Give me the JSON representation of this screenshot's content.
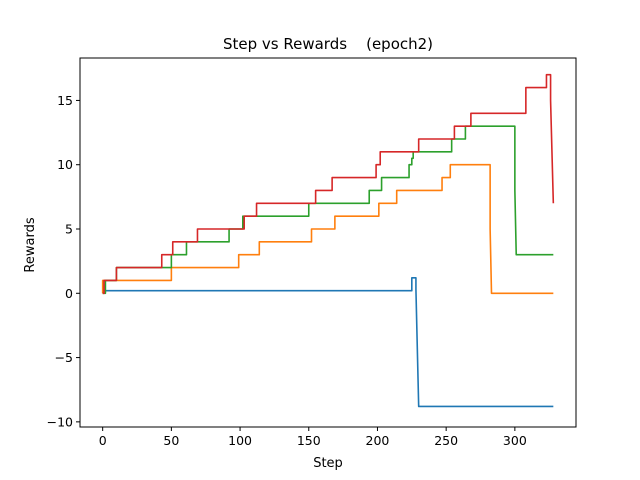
{
  "chart_data": {
    "type": "line",
    "title": "Step vs Rewards    (epoch2)",
    "xlabel": "Step",
    "ylabel": "Rewards",
    "xlim": [
      -16.5,
      344.5
    ],
    "ylim": [
      -10.4,
      18.3
    ],
    "xticks": [
      0,
      50,
      100,
      150,
      200,
      250,
      300
    ],
    "yticks": [
      -10,
      -5,
      0,
      5,
      10,
      15
    ],
    "grid": false,
    "series": [
      {
        "color": "#1f77b4",
        "x": [
          0,
          225,
          225,
          228,
          228,
          230,
          230,
          328
        ],
        "y": [
          0.2,
          0.2,
          1.2,
          1.2,
          0.3,
          -8.8,
          -8.8,
          -8.8
        ]
      },
      {
        "color": "#ff7f0e",
        "x": [
          0,
          0,
          50,
          50,
          99,
          99,
          114,
          114,
          152,
          152,
          169,
          169,
          201,
          201,
          214,
          214,
          247,
          247,
          253,
          253,
          282,
          282,
          283,
          328
        ],
        "y": [
          0,
          1,
          1,
          2,
          2,
          3,
          3,
          4,
          4,
          5,
          5,
          6,
          6,
          7,
          7,
          8,
          8,
          9,
          9,
          10,
          10,
          5,
          0,
          0
        ],
        "smooth": true
      },
      {
        "color": "#2ca02c",
        "x": [
          0,
          2,
          2,
          10,
          10,
          50,
          50,
          61,
          61,
          92,
          92,
          102,
          102,
          150,
          150,
          194,
          194,
          203,
          203,
          223,
          223,
          225,
          225,
          226,
          226,
          254,
          254,
          264,
          264,
          300,
          300,
          301,
          301,
          328
        ],
        "y": [
          0,
          0,
          1,
          1,
          2,
          2,
          3,
          3,
          4,
          4,
          5,
          5,
          6,
          6,
          7,
          7,
          8,
          8,
          9,
          9,
          10,
          10,
          10.5,
          10.5,
          11,
          11,
          12,
          12,
          13,
          13,
          8,
          3,
          3,
          3
        ]
      },
      {
        "color": "#d62728",
        "x": [
          0,
          1,
          1,
          10,
          10,
          43,
          43,
          51,
          51,
          69,
          69,
          103,
          103,
          112,
          112,
          155,
          155,
          167,
          167,
          199,
          199,
          202,
          202,
          230,
          230,
          256,
          256,
          268,
          268,
          308,
          308,
          323,
          323,
          326,
          326,
          328
        ],
        "y": [
          0,
          0,
          1,
          1,
          2,
          2,
          3,
          3,
          4,
          4,
          5,
          5,
          6,
          6,
          7,
          7,
          8,
          8,
          9,
          9,
          10,
          10,
          11,
          11,
          12,
          12,
          13,
          13,
          14,
          14,
          16,
          16,
          17,
          17,
          15,
          7
        ]
      }
    ]
  }
}
